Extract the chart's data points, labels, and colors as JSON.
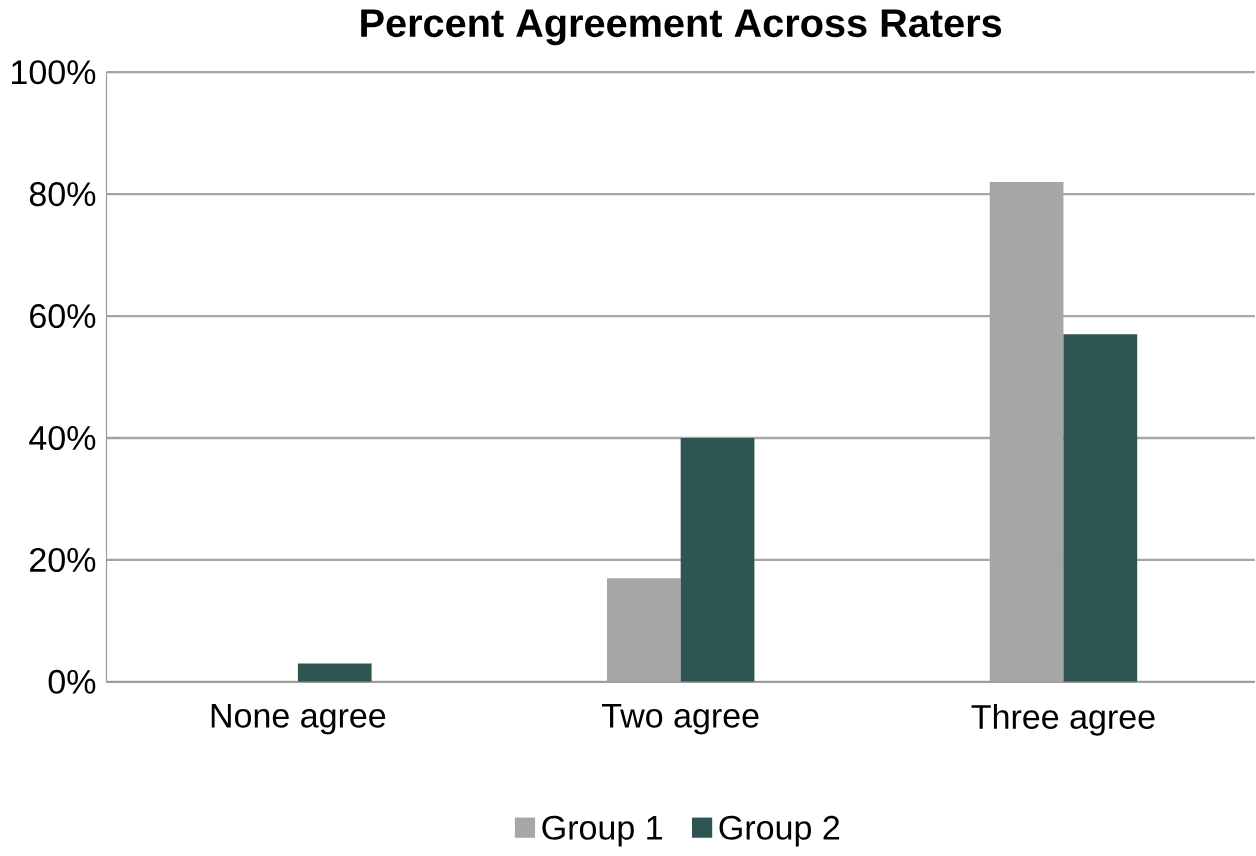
{
  "chart_data": {
    "type": "bar",
    "title": "Percent Agreement Across Raters",
    "categories": [
      "None agree",
      "Two agree",
      "Three agree"
    ],
    "series": [
      {
        "name": "Group 1",
        "color": "#a6a6a6",
        "values": [
          0,
          17,
          82
        ]
      },
      {
        "name": "Group 2",
        "color": "#2e5552",
        "values": [
          3,
          40,
          57
        ]
      }
    ],
    "ylim": [
      0,
      100
    ],
    "yticks": [
      {
        "value": 0,
        "label": "0%"
      },
      {
        "value": 20,
        "label": "20%"
      },
      {
        "value": 40,
        "label": "40%"
      },
      {
        "value": 60,
        "label": "60%"
      },
      {
        "value": 80,
        "label": "80%"
      },
      {
        "value": 100,
        "label": "100%"
      }
    ],
    "grid": "y",
    "legend": "bottom"
  }
}
